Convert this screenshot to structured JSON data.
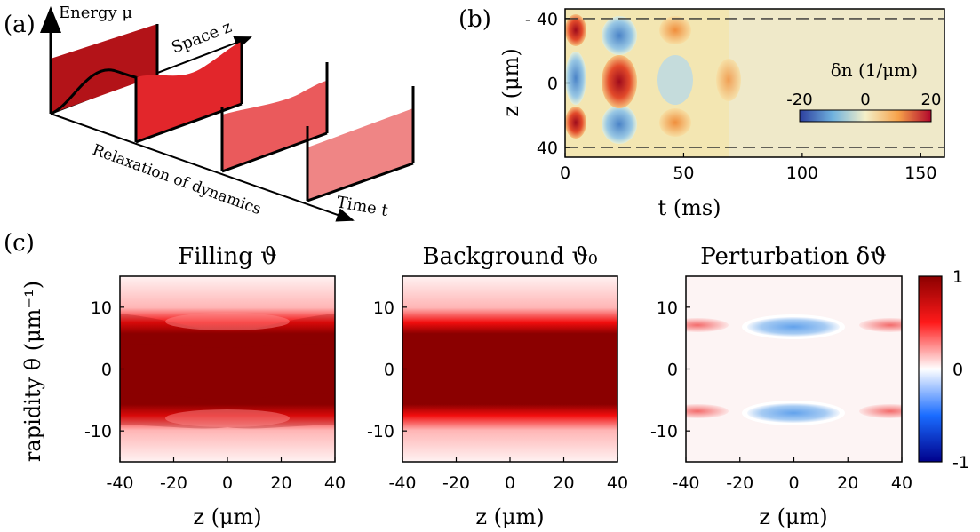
{
  "panel_labels": {
    "a": "(a)",
    "b": "(b)",
    "c": "(c)"
  },
  "schematic": {
    "energy_axis": "Energy μ",
    "space_axis": "Space z",
    "time_axis": "Time t",
    "relaxation_label": "Relaxation of dynamics",
    "colors": [
      "#b31318",
      "#e2262b",
      "#ea5a5c",
      "#ef8585"
    ]
  },
  "chart_data": [
    {
      "type": "heatmap",
      "id": "b",
      "xlabel": "t (ms)",
      "ylabel": "z (μm)",
      "xlim": [
        0,
        160
      ],
      "ylim": [
        -46,
        46
      ],
      "x_ticks": [
        0,
        50,
        100,
        150
      ],
      "y_ticks": [
        -40,
        0,
        40
      ],
      "y_tick_labels": [
        "- 40",
        "0",
        "40"
      ],
      "dashed_lines_z": [
        -40,
        40
      ],
      "colorbar": {
        "label": "δn (1/μm)",
        "range": [
          -20,
          20
        ],
        "ticks": [
          -20,
          0,
          20
        ],
        "placement": "inside-right"
      }
    },
    {
      "type": "heatmap",
      "id": "c1",
      "title": "Filling ϑ",
      "xlabel": "z (μm)",
      "ylabel": "rapidity θ (μm⁻¹)",
      "xlim": [
        -40,
        40
      ],
      "ylim": [
        -15,
        15
      ],
      "x_ticks": [
        -40,
        -20,
        0,
        20,
        40
      ],
      "y_ticks": [
        10,
        0,
        -10
      ]
    },
    {
      "type": "heatmap",
      "id": "c2",
      "title": "Background ϑ₀",
      "xlabel": "",
      "ylabel": "",
      "xlim": [
        -40,
        40
      ],
      "ylim": [
        -15,
        15
      ],
      "x_ticks": [
        -40,
        -20,
        0,
        20,
        40
      ],
      "y_ticks": [
        10,
        0,
        -10
      ]
    },
    {
      "type": "heatmap",
      "id": "c3",
      "title": "Perturbation δϑ",
      "xlabel": "z (μm)",
      "ylabel": "",
      "xlim": [
        -40,
        40
      ],
      "ylim": [
        -15,
        15
      ],
      "x_ticks": [
        -40,
        -20,
        0,
        20,
        40
      ],
      "y_ticks": [
        10,
        0,
        -10
      ],
      "colorbar": {
        "range": [
          -1,
          1
        ],
        "ticks": [
          1,
          0,
          -1
        ],
        "placement": "right"
      }
    }
  ]
}
